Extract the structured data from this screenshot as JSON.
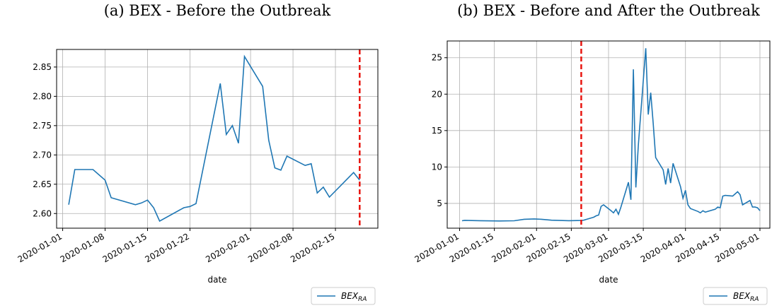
{
  "chart_data": [
    {
      "type": "line",
      "title": "(a) BEX - Before the Outbreak",
      "xlabel": "date",
      "x": [
        "2020-01-02",
        "2020-01-03",
        "2020-01-06",
        "2020-01-08",
        "2020-01-09",
        "2020-01-13",
        "2020-01-14",
        "2020-01-15",
        "2020-01-16",
        "2020-01-17",
        "2020-01-21",
        "2020-01-22",
        "2020-01-23",
        "2020-01-27",
        "2020-01-28",
        "2020-01-29",
        "2020-01-30",
        "2020-01-31",
        "2020-02-03",
        "2020-02-04",
        "2020-02-05",
        "2020-02-06",
        "2020-02-07",
        "2020-02-10",
        "2020-02-11",
        "2020-02-12",
        "2020-02-13",
        "2020-02-14",
        "2020-02-18",
        "2020-02-19"
      ],
      "series": [
        {
          "name": "BEX",
          "name_subscript": "RA",
          "color": "#1f77b4",
          "values": [
            2.615,
            2.675,
            2.675,
            2.657,
            2.627,
            2.615,
            2.618,
            2.623,
            2.61,
            2.587,
            2.61,
            2.612,
            2.617,
            2.822,
            2.735,
            2.75,
            2.72,
            2.868,
            2.817,
            2.725,
            2.678,
            2.674,
            2.698,
            2.682,
            2.685,
            2.635,
            2.645,
            2.628,
            2.67,
            2.657
          ]
        }
      ],
      "vline": "2020-02-19",
      "vline_color": "#e8150f",
      "xlim": [
        "2019-12-31",
        "2020-02-22"
      ],
      "xticks": [
        "2020-01-01",
        "2020-01-08",
        "2020-01-15",
        "2020-01-22",
        "2020-02-01",
        "2020-02-08",
        "2020-02-15"
      ],
      "ylim": [
        2.575,
        2.88
      ],
      "yticks": [
        {
          "value": 2.6,
          "label": "2.60"
        },
        2.65,
        {
          "value": 2.7,
          "label": "2.70"
        },
        2.75,
        {
          "value": 2.8,
          "label": "2.80"
        },
        2.85
      ],
      "grid": true,
      "legend": "lower right"
    },
    {
      "type": "line",
      "title": "(b) BEX - Before and After the Outbreak",
      "xlabel": "date",
      "x": [
        "2020-01-02",
        "2020-01-03",
        "2020-01-09",
        "2020-01-17",
        "2020-01-23",
        "2020-01-27",
        "2020-01-31",
        "2020-02-03",
        "2020-02-07",
        "2020-02-14",
        "2020-02-19",
        "2020-02-20",
        "2020-02-21",
        "2020-02-24",
        "2020-02-25",
        "2020-02-26",
        "2020-02-27",
        "2020-02-28",
        "2020-03-02",
        "2020-03-03",
        "2020-03-04",
        "2020-03-05",
        "2020-03-06",
        "2020-03-09",
        "2020-03-10",
        "2020-03-11",
        "2020-03-12",
        "2020-03-13",
        "2020-03-16",
        "2020-03-17",
        "2020-03-18",
        "2020-03-19",
        "2020-03-20",
        "2020-03-23",
        "2020-03-24",
        "2020-03-25",
        "2020-03-26",
        "2020-03-27",
        "2020-03-30",
        "2020-03-31",
        "2020-04-01",
        "2020-04-02",
        "2020-04-03",
        "2020-04-06",
        "2020-04-07",
        "2020-04-08",
        "2020-04-09",
        "2020-04-13",
        "2020-04-14",
        "2020-04-15",
        "2020-04-16",
        "2020-04-17",
        "2020-04-20",
        "2020-04-21",
        "2020-04-22",
        "2020-04-23",
        "2020-04-24",
        "2020-04-27",
        "2020-04-28",
        "2020-04-29",
        "2020-04-30",
        "2020-05-01"
      ],
      "series": [
        {
          "name": "BEX",
          "name_subscript": "RA",
          "color": "#1f77b4",
          "values": [
            2.62,
            2.68,
            2.63,
            2.59,
            2.62,
            2.82,
            2.87,
            2.82,
            2.7,
            2.63,
            2.66,
            2.7,
            2.8,
            3.1,
            3.3,
            3.4,
            4.6,
            4.8,
            4.0,
            3.7,
            4.2,
            3.5,
            4.5,
            7.9,
            5.5,
            23.4,
            7.2,
            13.0,
            26.3,
            17.2,
            20.2,
            16.0,
            11.3,
            9.6,
            7.6,
            9.8,
            7.8,
            10.5,
            7.3,
            5.7,
            6.8,
            4.8,
            4.3,
            3.9,
            3.7,
            4.0,
            3.8,
            4.2,
            4.5,
            4.4,
            6.0,
            6.1,
            6.0,
            6.3,
            6.6,
            6.2,
            4.8,
            5.4,
            4.5,
            4.5,
            4.4,
            4.0
          ]
        }
      ],
      "vline": "2020-02-19",
      "vline_color": "#e8150f",
      "xlim": [
        "2019-12-27",
        "2020-05-05"
      ],
      "xticks": [
        "2020-01-01",
        "2020-01-15",
        "2020-02-01",
        "2020-02-15",
        "2020-03-01",
        "2020-03-15",
        "2020-04-01",
        "2020-04-15",
        "2020-05-01"
      ],
      "ylim": [
        1.6,
        27.3
      ],
      "yticks": [
        5,
        10,
        15,
        20,
        25
      ],
      "grid": true,
      "legend": "lower right"
    }
  ]
}
